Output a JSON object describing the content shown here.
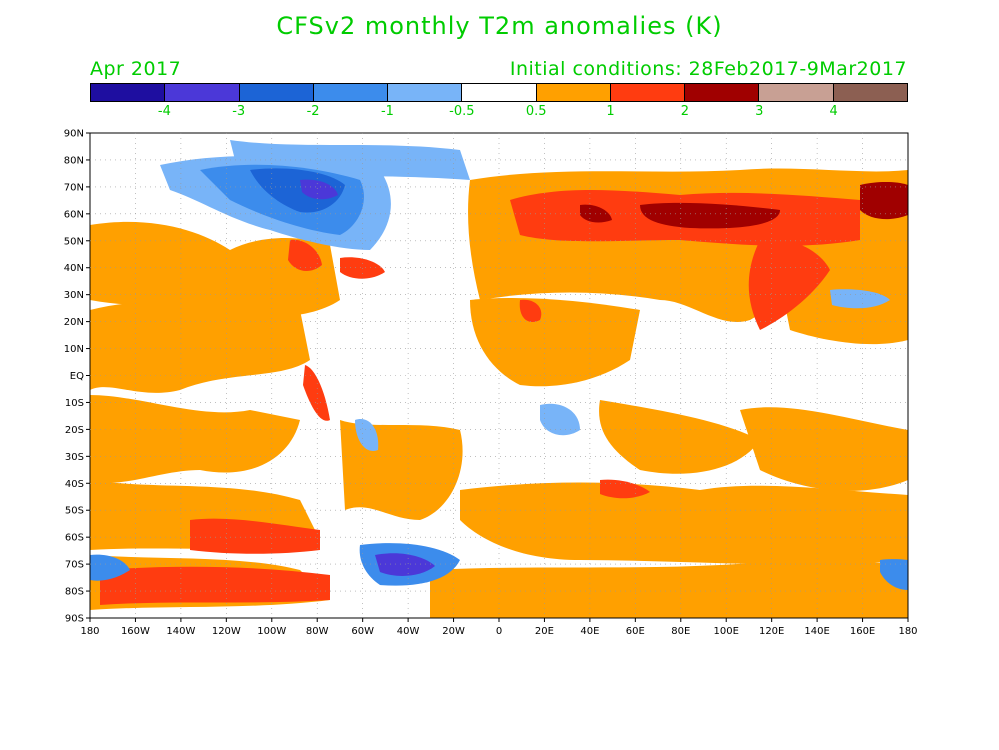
{
  "title": "CFSv2 monthly T2m anomalies (K)",
  "valid_month": "Apr 2017",
  "initial_conditions": "Initial conditions: 28Feb2017-9Mar2017",
  "colors": {
    "text": "#00cc00",
    "scale": [
      "#1e0ea0",
      "#4b38d8",
      "#1c64d6",
      "#3c8cec",
      "#78b4f8",
      "#ffffff",
      "#ffa000",
      "#ff3c10",
      "#a00000",
      "#c8a094",
      "#8c5f52"
    ]
  },
  "colorbar": {
    "labels": [
      "-4",
      "-3",
      "-2",
      "-1",
      "-0.5",
      "0.5",
      "1",
      "2",
      "3",
      "4"
    ]
  },
  "axes": {
    "lat_labels": [
      "90N",
      "80N",
      "70N",
      "60N",
      "50N",
      "40N",
      "30N",
      "20N",
      "10N",
      "EQ",
      "10S",
      "20S",
      "30S",
      "40S",
      "50S",
      "60S",
      "70S",
      "80S",
      "90S"
    ],
    "lon_labels": [
      "180",
      "160W",
      "140W",
      "120W",
      "100W",
      "80W",
      "60W",
      "40W",
      "20W",
      "0",
      "20E",
      "40E",
      "60E",
      "80E",
      "100E",
      "120E",
      "140E",
      "160E",
      "180"
    ]
  }
}
